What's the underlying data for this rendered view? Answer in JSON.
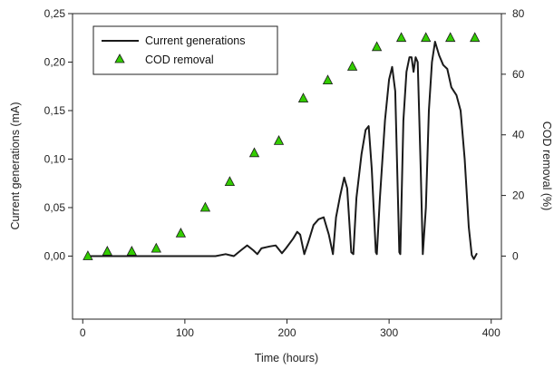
{
  "chart_data": {
    "type": "line",
    "title": "",
    "xlabel": "Time (hours)",
    "ylabel_left": "Current generations (mA)",
    "ylabel_right": "COD removal (%)",
    "xlim": [
      -10,
      410
    ],
    "ylim_left": [
      -0.065,
      0.25
    ],
    "ylim_right": [
      -20.8,
      80
    ],
    "x_ticks": [
      0,
      100,
      200,
      300,
      400
    ],
    "y_left_ticks": [
      "0,00",
      "0,05",
      "0,10",
      "0,15",
      "0,20",
      "0,25"
    ],
    "y_right_ticks": [
      0,
      20,
      40,
      60,
      80
    ],
    "grid": false,
    "legend_position": "top-left",
    "series": [
      {
        "name": "Current generations",
        "axis": "left",
        "style": "line",
        "color": "#1a1a1a",
        "points": [
          [
            5,
            0.0
          ],
          [
            50,
            0.0
          ],
          [
            100,
            0.0
          ],
          [
            130,
            0.0
          ],
          [
            140,
            0.002
          ],
          [
            148,
            0.0
          ],
          [
            155,
            0.006
          ],
          [
            161,
            0.011
          ],
          [
            167,
            0.006
          ],
          [
            171,
            0.002
          ],
          [
            175,
            0.008
          ],
          [
            183,
            0.01
          ],
          [
            189,
            0.011
          ],
          [
            195,
            0.003
          ],
          [
            199,
            0.008
          ],
          [
            206,
            0.018
          ],
          [
            210,
            0.025
          ],
          [
            213,
            0.022
          ],
          [
            217,
            0.002
          ],
          [
            221,
            0.015
          ],
          [
            226,
            0.032
          ],
          [
            231,
            0.038
          ],
          [
            236,
            0.04
          ],
          [
            241,
            0.022
          ],
          [
            245,
            0.002
          ],
          [
            248,
            0.04
          ],
          [
            252,
            0.062
          ],
          [
            256,
            0.081
          ],
          [
            259,
            0.07
          ],
          [
            263,
            0.004
          ],
          [
            265,
            0.002
          ],
          [
            268,
            0.06
          ],
          [
            273,
            0.105
          ],
          [
            277,
            0.13
          ],
          [
            280,
            0.134
          ],
          [
            283,
            0.09
          ],
          [
            287,
            0.004
          ],
          [
            288,
            0.002
          ],
          [
            291,
            0.06
          ],
          [
            296,
            0.14
          ],
          [
            300,
            0.182
          ],
          [
            303,
            0.195
          ],
          [
            306,
            0.17
          ],
          [
            310,
            0.004
          ],
          [
            311,
            0.002
          ],
          [
            314,
            0.14
          ],
          [
            317,
            0.19
          ],
          [
            320,
            0.205
          ],
          [
            322,
            0.205
          ],
          [
            324,
            0.19
          ],
          [
            326,
            0.205
          ],
          [
            328,
            0.2
          ],
          [
            331,
            0.09
          ],
          [
            333,
            0.002
          ],
          [
            336,
            0.05
          ],
          [
            339,
            0.15
          ],
          [
            342,
            0.2
          ],
          [
            345,
            0.221
          ],
          [
            349,
            0.207
          ],
          [
            353,
            0.197
          ],
          [
            357,
            0.193
          ],
          [
            361,
            0.174
          ],
          [
            366,
            0.166
          ],
          [
            370,
            0.15
          ],
          [
            374,
            0.1
          ],
          [
            378,
            0.03
          ],
          [
            381,
            0.001
          ],
          [
            383,
            -0.003
          ],
          [
            386,
            0.003
          ]
        ]
      },
      {
        "name": "COD removal",
        "axis": "right",
        "style": "marker",
        "marker": "triangle",
        "color": "#33cc00",
        "points": [
          [
            5,
            0.0
          ],
          [
            24,
            1.5
          ],
          [
            48,
            1.5
          ],
          [
            72,
            2.5
          ],
          [
            96,
            7.5
          ],
          [
            120,
            16.0
          ],
          [
            144,
            24.5
          ],
          [
            168,
            34.0
          ],
          [
            192,
            38.0
          ],
          [
            216,
            52.0
          ],
          [
            240,
            58.0
          ],
          [
            264,
            62.5
          ],
          [
            288,
            69.0
          ],
          [
            312,
            72.0
          ],
          [
            336,
            72.0
          ],
          [
            360,
            72.0
          ],
          [
            384,
            72.0
          ]
        ]
      }
    ]
  }
}
